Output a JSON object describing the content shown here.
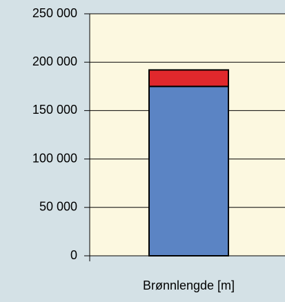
{
  "chart_data": {
    "type": "stacked_bar",
    "categories": [
      "Brønnlengde [m]"
    ],
    "series": [
      {
        "color": "#5b84c4",
        "values": [
          175000
        ]
      },
      {
        "color": "#e0282c",
        "values": [
          17000
        ]
      }
    ],
    "ylim": [
      0,
      250000
    ],
    "yticks": [
      {
        "value": 0,
        "label": "0"
      },
      {
        "value": 50000,
        "label": "50 000"
      },
      {
        "value": 100000,
        "label": "100 000"
      },
      {
        "value": 150000,
        "label": "150 000"
      },
      {
        "value": 200000,
        "label": "200 000"
      },
      {
        "value": 250000,
        "label": "250 000"
      }
    ],
    "grid": true,
    "background": "#d4e1e6",
    "plot_background": "#fcf8e0"
  }
}
